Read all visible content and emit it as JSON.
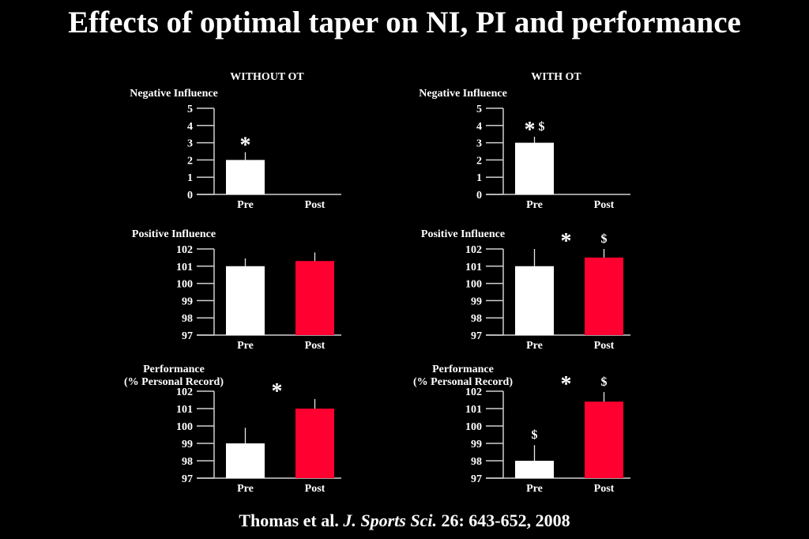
{
  "slide": {
    "title": "Effects of optimal taper on NI, PI and performance",
    "columns": [
      "WITHOUT OT",
      "WITH OT"
    ],
    "citation": {
      "authors": "Thomas et al.",
      "journal": "J. Sports Sci.",
      "details": "26: 643-652, 2008"
    }
  },
  "colors": {
    "background": "#000000",
    "text": "#ffffff",
    "pre_bar": "#ffffff",
    "post_bar": "#ff0030",
    "axis": "#cfcfcf"
  },
  "chart_data": [
    {
      "type": "bar",
      "group": "WITHOUT OT",
      "title": "Negative Influence",
      "title_lines": [
        "Negative Influence"
      ],
      "xlabel": "",
      "ylabel": "Negative Influence",
      "categories": [
        "Pre",
        "Post"
      ],
      "values": [
        2.0,
        0
      ],
      "errors": [
        0.45,
        null
      ],
      "ylim": [
        0,
        5
      ],
      "yticks": [
        0,
        1,
        2,
        3,
        4,
        5
      ],
      "grid": false,
      "legend": "none",
      "bar_colors": [
        "#ffffff",
        "#ff0030"
      ],
      "annotations": [
        {
          "marks": [
            "*"
          ],
          "anchor": "Pre"
        }
      ]
    },
    {
      "type": "bar",
      "group": "WITH OT",
      "title": "Negative Influence",
      "title_lines": [
        "Negative Influence"
      ],
      "xlabel": "",
      "ylabel": "Negative Influence",
      "categories": [
        "Pre",
        "Post"
      ],
      "values": [
        3.0,
        0
      ],
      "errors": [
        0.35,
        null
      ],
      "ylim": [
        0,
        5
      ],
      "yticks": [
        0,
        1,
        2,
        3,
        4,
        5
      ],
      "grid": false,
      "legend": "none",
      "bar_colors": [
        "#ffffff",
        "#ff0030"
      ],
      "annotations": [
        {
          "marks": [
            "*",
            "$"
          ],
          "anchor": "Pre"
        }
      ]
    },
    {
      "type": "bar",
      "group": "WITHOUT OT",
      "title": "Positive Influence",
      "title_lines": [
        "Positive Influence"
      ],
      "xlabel": "",
      "ylabel": "Positive Influence",
      "categories": [
        "Pre",
        "Post"
      ],
      "values": [
        101.0,
        101.3
      ],
      "errors": [
        0.45,
        0.5
      ],
      "ylim": [
        97,
        102
      ],
      "yticks": [
        97,
        98,
        99,
        100,
        101,
        102
      ],
      "grid": false,
      "legend": "none",
      "bar_colors": [
        "#ffffff",
        "#ff0030"
      ],
      "annotations": []
    },
    {
      "type": "bar",
      "group": "WITH OT",
      "title": "Positive Influence",
      "title_lines": [
        "Positive Influence"
      ],
      "xlabel": "",
      "ylabel": "Positive Influence",
      "categories": [
        "Pre",
        "Post"
      ],
      "values": [
        101.0,
        101.5
      ],
      "errors": [
        1.0,
        0.5
      ],
      "ylim": [
        97,
        102
      ],
      "yticks": [
        97,
        98,
        99,
        100,
        101,
        102
      ],
      "grid": false,
      "legend": "none",
      "bar_colors": [
        "#ffffff",
        "#ff0030"
      ],
      "annotations": [
        {
          "marks": [
            "*"
          ],
          "anchor": "between"
        },
        {
          "marks": [
            "$"
          ],
          "anchor": "Post"
        }
      ]
    },
    {
      "type": "bar",
      "group": "WITHOUT OT",
      "title": "Performance (% Personal Record)",
      "title_lines": [
        "Performance",
        "(% Personal Record)"
      ],
      "xlabel": "",
      "ylabel": "Performance (% Personal Record)",
      "categories": [
        "Pre",
        "Post"
      ],
      "values": [
        99.0,
        101.0
      ],
      "errors": [
        0.9,
        0.55
      ],
      "ylim": [
        97,
        102
      ],
      "yticks": [
        97,
        98,
        99,
        100,
        101,
        102
      ],
      "grid": false,
      "legend": "none",
      "bar_colors": [
        "#ffffff",
        "#ff0030"
      ],
      "annotations": [
        {
          "marks": [
            "*"
          ],
          "anchor": "between"
        }
      ]
    },
    {
      "type": "bar",
      "group": "WITH OT",
      "title": "Performance (% Personal Record)",
      "title_lines": [
        "Performance",
        "(% Personal Record)"
      ],
      "xlabel": "",
      "ylabel": "Performance (% Personal Record)",
      "categories": [
        "Pre",
        "Post"
      ],
      "values": [
        98.0,
        101.4
      ],
      "errors": [
        0.9,
        0.55
      ],
      "ylim": [
        97,
        102
      ],
      "yticks": [
        97,
        98,
        99,
        100,
        101,
        102
      ],
      "grid": false,
      "legend": "none",
      "bar_colors": [
        "#ffffff",
        "#ff0030"
      ],
      "annotations": [
        {
          "marks": [
            "$"
          ],
          "anchor": "Pre"
        },
        {
          "marks": [
            "*"
          ],
          "anchor": "between"
        },
        {
          "marks": [
            "$"
          ],
          "anchor": "Post"
        }
      ]
    }
  ]
}
